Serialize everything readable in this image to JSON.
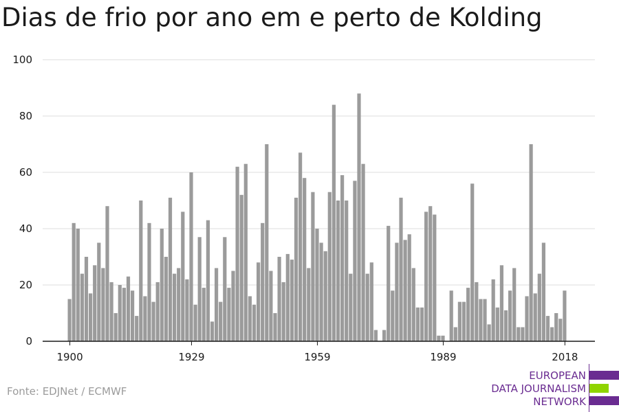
{
  "title": "Dias de frio por ano em e perto de Kolding",
  "source": "Fonte: EDJNet / ECMWF",
  "logo": {
    "lines": [
      "EUROPEAN",
      "DATA JOURNALISM",
      "NETWORK"
    ],
    "colors": {
      "purple": "#6a2c91",
      "green": "#8fd400"
    }
  },
  "chart_data": {
    "type": "bar",
    "title": "Dias de frio por ano em e perto de Kolding",
    "xlabel": "",
    "ylabel": "",
    "x_start": 1900,
    "x_end": 2021,
    "x_ticks": [
      1900,
      1929,
      1959,
      1989,
      2018
    ],
    "y_ticks": [
      0,
      20,
      40,
      60,
      80,
      100
    ],
    "ylim": [
      0,
      100
    ],
    "grid": true,
    "bar_color": "#9b9b9b",
    "values": [
      15,
      42,
      40,
      24,
      30,
      17,
      27,
      35,
      26,
      48,
      21,
      10,
      20,
      19,
      23,
      18,
      9,
      50,
      16,
      42,
      14,
      21,
      40,
      30,
      51,
      24,
      26,
      46,
      22,
      60,
      13,
      37,
      19,
      43,
      7,
      26,
      14,
      37,
      19,
      25,
      62,
      52,
      63,
      16,
      13,
      28,
      42,
      70,
      25,
      10,
      30,
      21,
      31,
      29,
      51,
      67,
      58,
      26,
      53,
      40,
      35,
      32,
      53,
      84,
      50,
      59,
      50,
      24,
      57,
      88,
      63,
      24,
      28,
      4,
      0,
      4,
      41,
      18,
      35,
      51,
      36,
      38,
      26,
      12,
      12,
      46,
      48,
      45,
      2,
      2,
      0,
      18,
      5,
      14,
      14,
      19,
      56,
      21,
      15,
      15,
      6,
      22,
      12,
      27,
      11,
      18,
      26,
      5,
      5,
      16,
      70,
      17,
      24,
      35,
      9,
      5,
      10,
      8,
      18
    ]
  }
}
